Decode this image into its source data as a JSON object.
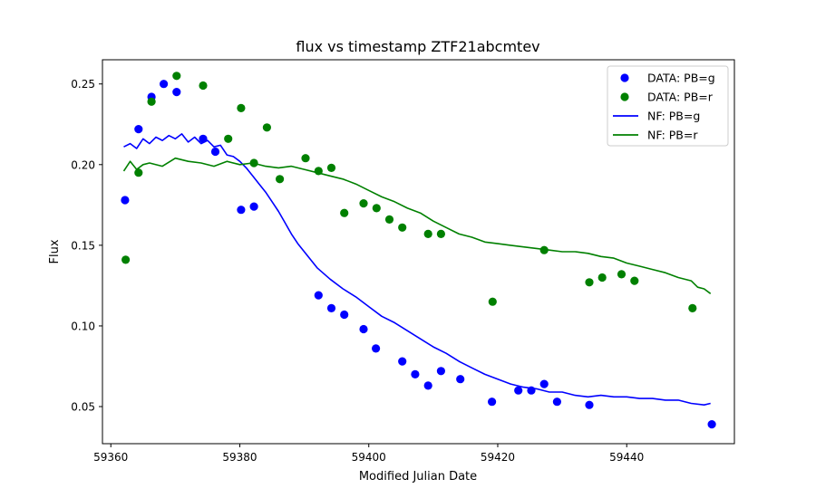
{
  "chart_data": {
    "type": "scatter",
    "title": "flux vs timestamp ZTF21abcmtev",
    "xlabel": "Modified Julian Date",
    "ylabel": "Flux",
    "xlim": [
      59358.7,
      59456.7
    ],
    "ylim": [
      0.027,
      0.265
    ],
    "xticks": [
      59360,
      59380,
      59400,
      59420,
      59440
    ],
    "yticks": [
      0.05,
      0.1,
      0.15,
      0.2,
      0.25
    ],
    "xtick_labels": [
      "59360",
      "59380",
      "59400",
      "59420",
      "59440"
    ],
    "ytick_labels": [
      "0.05",
      "0.10",
      "0.15",
      "0.20",
      "0.25"
    ],
    "grid": false,
    "legend_position": "top-right",
    "series": [
      {
        "name": "DATA: PB=g",
        "kind": "scatter",
        "color": "#0000ff",
        "x": [
          59362.2,
          59364.3,
          59366.3,
          59368.2,
          59370.2,
          59374.3,
          59376.2,
          59380.2,
          59382.2,
          59392.2,
          59394.2,
          59396.2,
          59399.2,
          59401.1,
          59405.2,
          59407.2,
          59409.2,
          59411.2,
          59414.2,
          59419.1,
          59423.2,
          59425.2,
          59427.2,
          59429.2,
          59434.2,
          59453.2
        ],
        "y": [
          0.178,
          0.222,
          0.242,
          0.25,
          0.245,
          0.216,
          0.208,
          0.172,
          0.174,
          0.119,
          0.111,
          0.107,
          0.098,
          0.086,
          0.078,
          0.07,
          0.063,
          0.072,
          0.067,
          0.053,
          0.06,
          0.06,
          0.064,
          0.053,
          0.051,
          0.039
        ]
      },
      {
        "name": "DATA: PB=r",
        "kind": "scatter",
        "color": "#008000",
        "x": [
          59362.3,
          59364.3,
          59366.3,
          59370.2,
          59374.3,
          59378.2,
          59380.2,
          59382.2,
          59384.2,
          59386.2,
          59390.2,
          59392.2,
          59394.2,
          59396.2,
          59399.2,
          59401.2,
          59403.2,
          59405.2,
          59409.2,
          59411.2,
          59419.2,
          59427.2,
          59434.2,
          59436.2,
          59439.2,
          59441.2,
          59450.2
        ],
        "y": [
          0.141,
          0.195,
          0.239,
          0.255,
          0.249,
          0.216,
          0.235,
          0.201,
          0.223,
          0.191,
          0.204,
          0.196,
          0.198,
          0.17,
          0.176,
          0.173,
          0.166,
          0.161,
          0.157,
          0.157,
          0.115,
          0.147,
          0.127,
          0.13,
          0.132,
          0.128,
          0.111
        ]
      },
      {
        "name": "NF: PB=g",
        "kind": "line",
        "color": "#0000ff",
        "x": [
          59362.0,
          59363.0,
          59364.0,
          59365.0,
          59366.0,
          59367.0,
          59368.0,
          59369.0,
          59370.0,
          59371.0,
          59372.0,
          59373.0,
          59374.0,
          59375.0,
          59376.0,
          59377.0,
          59378.0,
          59379.0,
          59380.0,
          59381.0,
          59382.0,
          59383.0,
          59384.0,
          59385.0,
          59386.0,
          59387.0,
          59388.0,
          59389.0,
          59390.0,
          59391.0,
          59392.0,
          59394.0,
          59396.0,
          59398.0,
          59400.0,
          59402.0,
          59404.0,
          59406.0,
          59408.0,
          59410.0,
          59412.0,
          59414.0,
          59416.0,
          59418.0,
          59420.0,
          59422.0,
          59424.0,
          59426.0,
          59428.0,
          59430.0,
          59432.0,
          59434.0,
          59436.0,
          59438.0,
          59440.0,
          59442.0,
          59444.0,
          59446.0,
          59448.0,
          59450.0,
          59452.0,
          59453.0
        ],
        "y": [
          0.211,
          0.213,
          0.21,
          0.216,
          0.213,
          0.217,
          0.215,
          0.218,
          0.216,
          0.219,
          0.214,
          0.217,
          0.213,
          0.215,
          0.211,
          0.212,
          0.206,
          0.205,
          0.202,
          0.198,
          0.193,
          0.188,
          0.183,
          0.177,
          0.171,
          0.164,
          0.157,
          0.151,
          0.146,
          0.141,
          0.136,
          0.129,
          0.123,
          0.118,
          0.112,
          0.106,
          0.102,
          0.097,
          0.092,
          0.087,
          0.083,
          0.078,
          0.074,
          0.07,
          0.067,
          0.064,
          0.062,
          0.061,
          0.059,
          0.059,
          0.057,
          0.056,
          0.057,
          0.056,
          0.056,
          0.055,
          0.055,
          0.054,
          0.054,
          0.052,
          0.051,
          0.052
        ]
      },
      {
        "name": "NF: PB=r",
        "kind": "line",
        "color": "#008000",
        "x": [
          59362.0,
          59363.0,
          59364.0,
          59365.0,
          59366.0,
          59368.0,
          59370.0,
          59372.0,
          59374.0,
          59376.0,
          59378.0,
          59380.0,
          59382.0,
          59384.0,
          59386.0,
          59388.0,
          59390.0,
          59392.0,
          59394.0,
          59396.0,
          59398.0,
          59400.0,
          59402.0,
          59404.0,
          59406.0,
          59408.0,
          59410.0,
          59412.0,
          59414.0,
          59416.0,
          59418.0,
          59420.0,
          59422.0,
          59424.0,
          59426.0,
          59428.0,
          59430.0,
          59432.0,
          59434.0,
          59436.0,
          59438.0,
          59440.0,
          59442.0,
          59444.0,
          59446.0,
          59448.0,
          59450.0,
          59451.0,
          59452.0,
          59453.0
        ],
        "y": [
          0.196,
          0.202,
          0.197,
          0.2,
          0.201,
          0.199,
          0.204,
          0.202,
          0.201,
          0.199,
          0.202,
          0.2,
          0.201,
          0.199,
          0.198,
          0.199,
          0.197,
          0.195,
          0.193,
          0.191,
          0.188,
          0.184,
          0.18,
          0.177,
          0.173,
          0.17,
          0.165,
          0.161,
          0.157,
          0.155,
          0.152,
          0.151,
          0.15,
          0.149,
          0.148,
          0.147,
          0.146,
          0.146,
          0.145,
          0.143,
          0.142,
          0.139,
          0.137,
          0.135,
          0.133,
          0.13,
          0.128,
          0.124,
          0.123,
          0.12
        ]
      }
    ]
  }
}
